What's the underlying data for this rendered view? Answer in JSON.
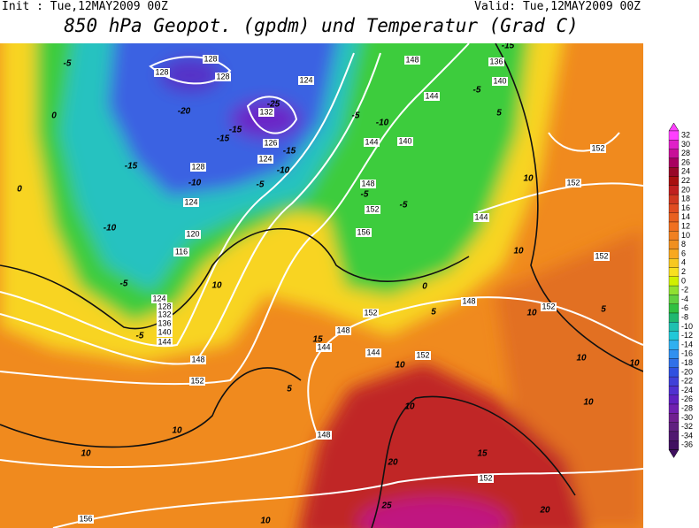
{
  "header": {
    "init": "Init : Tue,12MAY2009 00Z",
    "valid": "Valid: Tue,12MAY2009 00Z",
    "title": "850 hPa Geopot. (gpdm) und Temperatur (Grad C)"
  },
  "legend": {
    "levels": [
      {
        "label": "32",
        "color": "#ff40ff"
      },
      {
        "label": "30",
        "color": "#e020c8"
      },
      {
        "label": "28",
        "color": "#c81098"
      },
      {
        "label": "26",
        "color": "#a80060"
      },
      {
        "label": "24",
        "color": "#980828"
      },
      {
        "label": "22",
        "color": "#a81010"
      },
      {
        "label": "20",
        "color": "#c02020"
      },
      {
        "label": "18",
        "color": "#d03820"
      },
      {
        "label": "16",
        "color": "#e04c20"
      },
      {
        "label": "14",
        "color": "#e86020"
      },
      {
        "label": "12",
        "color": "#f07020"
      },
      {
        "label": "10",
        "color": "#f08020"
      },
      {
        "label": "8",
        "color": "#f09020"
      },
      {
        "label": "6",
        "color": "#f8a820"
      },
      {
        "label": "4",
        "color": "#f8c820"
      },
      {
        "label": "2",
        "color": "#f8e020"
      },
      {
        "label": "0",
        "color": "#d0f000"
      },
      {
        "label": "-2",
        "color": "#90e030"
      },
      {
        "label": "-4",
        "color": "#60d040"
      },
      {
        "label": "-6",
        "color": "#30c040"
      },
      {
        "label": "-8",
        "color": "#20b870"
      },
      {
        "label": "-10",
        "color": "#20c0b0"
      },
      {
        "label": "-12",
        "color": "#20c8d8"
      },
      {
        "label": "-14",
        "color": "#30b0f0"
      },
      {
        "label": "-16",
        "color": "#3090f0"
      },
      {
        "label": "-18",
        "color": "#3070e8"
      },
      {
        "label": "-20",
        "color": "#3050e0"
      },
      {
        "label": "-22",
        "color": "#4040d8"
      },
      {
        "label": "-24",
        "color": "#5030d0"
      },
      {
        "label": "-26",
        "color": "#6020c0"
      },
      {
        "label": "-28",
        "color": "#7020b0"
      },
      {
        "label": "-30",
        "color": "#702090"
      },
      {
        "label": "-32",
        "color": "#602080"
      },
      {
        "label": "-34",
        "color": "#501870"
      },
      {
        "label": "-36",
        "color": "#401060"
      }
    ]
  },
  "geopotential_labels": [
    "128",
    "128",
    "128",
    "124",
    "132",
    "126",
    "124",
    "128",
    "124",
    "120",
    "116",
    "124",
    "128",
    "132",
    "136",
    "140",
    "144",
    "148",
    "152",
    "148",
    "136",
    "140",
    "144",
    "140",
    "144",
    "148",
    "152",
    "156",
    "144",
    "152",
    "152",
    "152",
    "152",
    "148",
    "148",
    "144",
    "144",
    "152",
    "152",
    "148",
    "152",
    "156"
  ],
  "temperature_labels": [
    "-5",
    "0",
    "-20",
    "-25",
    "-15",
    "-15",
    "-15",
    "-10",
    "-5",
    "-10",
    "-15",
    "0",
    "-10",
    "-5",
    "10",
    "-5",
    "10",
    "10",
    "5",
    "10",
    "20",
    "15",
    "25",
    "20",
    "10",
    "10",
    "10",
    "10",
    "10",
    "5",
    "10",
    "10",
    "-5",
    "-5",
    "-10",
    "-5",
    "-5",
    "5",
    "-15",
    "15",
    "0",
    "5",
    "10"
  ]
}
